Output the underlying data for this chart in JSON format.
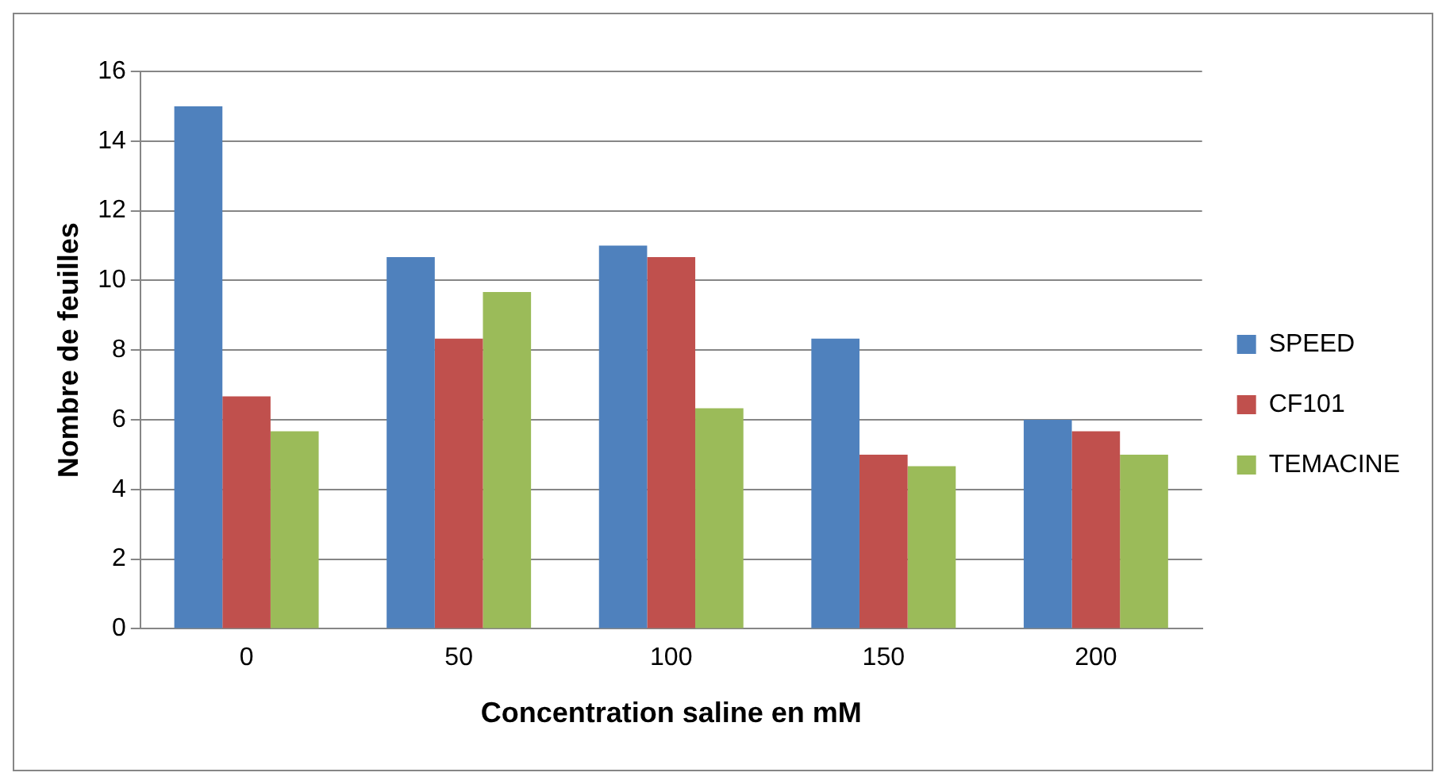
{
  "chart_data": {
    "type": "bar",
    "xlabel": "Concentration saline en mM",
    "ylabel": "Nombre de feuilles",
    "categories": [
      "0",
      "50",
      "100",
      "150",
      "200"
    ],
    "series": [
      {
        "name": "SPEED",
        "color": "#4f81bd",
        "values": [
          15,
          10.67,
          11,
          8.33,
          6
        ]
      },
      {
        "name": "CF101",
        "color": "#c0504d",
        "values": [
          6.67,
          8.33,
          10.67,
          5,
          5.67
        ]
      },
      {
        "name": "TEMACINE",
        "color": "#9bbb59",
        "values": [
          5.67,
          9.67,
          6.33,
          4.67,
          5
        ]
      }
    ],
    "ylim": [
      0,
      16
    ],
    "yticks": [
      0,
      2,
      4,
      6,
      8,
      10,
      12,
      14,
      16
    ],
    "grid": "y",
    "legend": "right"
  }
}
